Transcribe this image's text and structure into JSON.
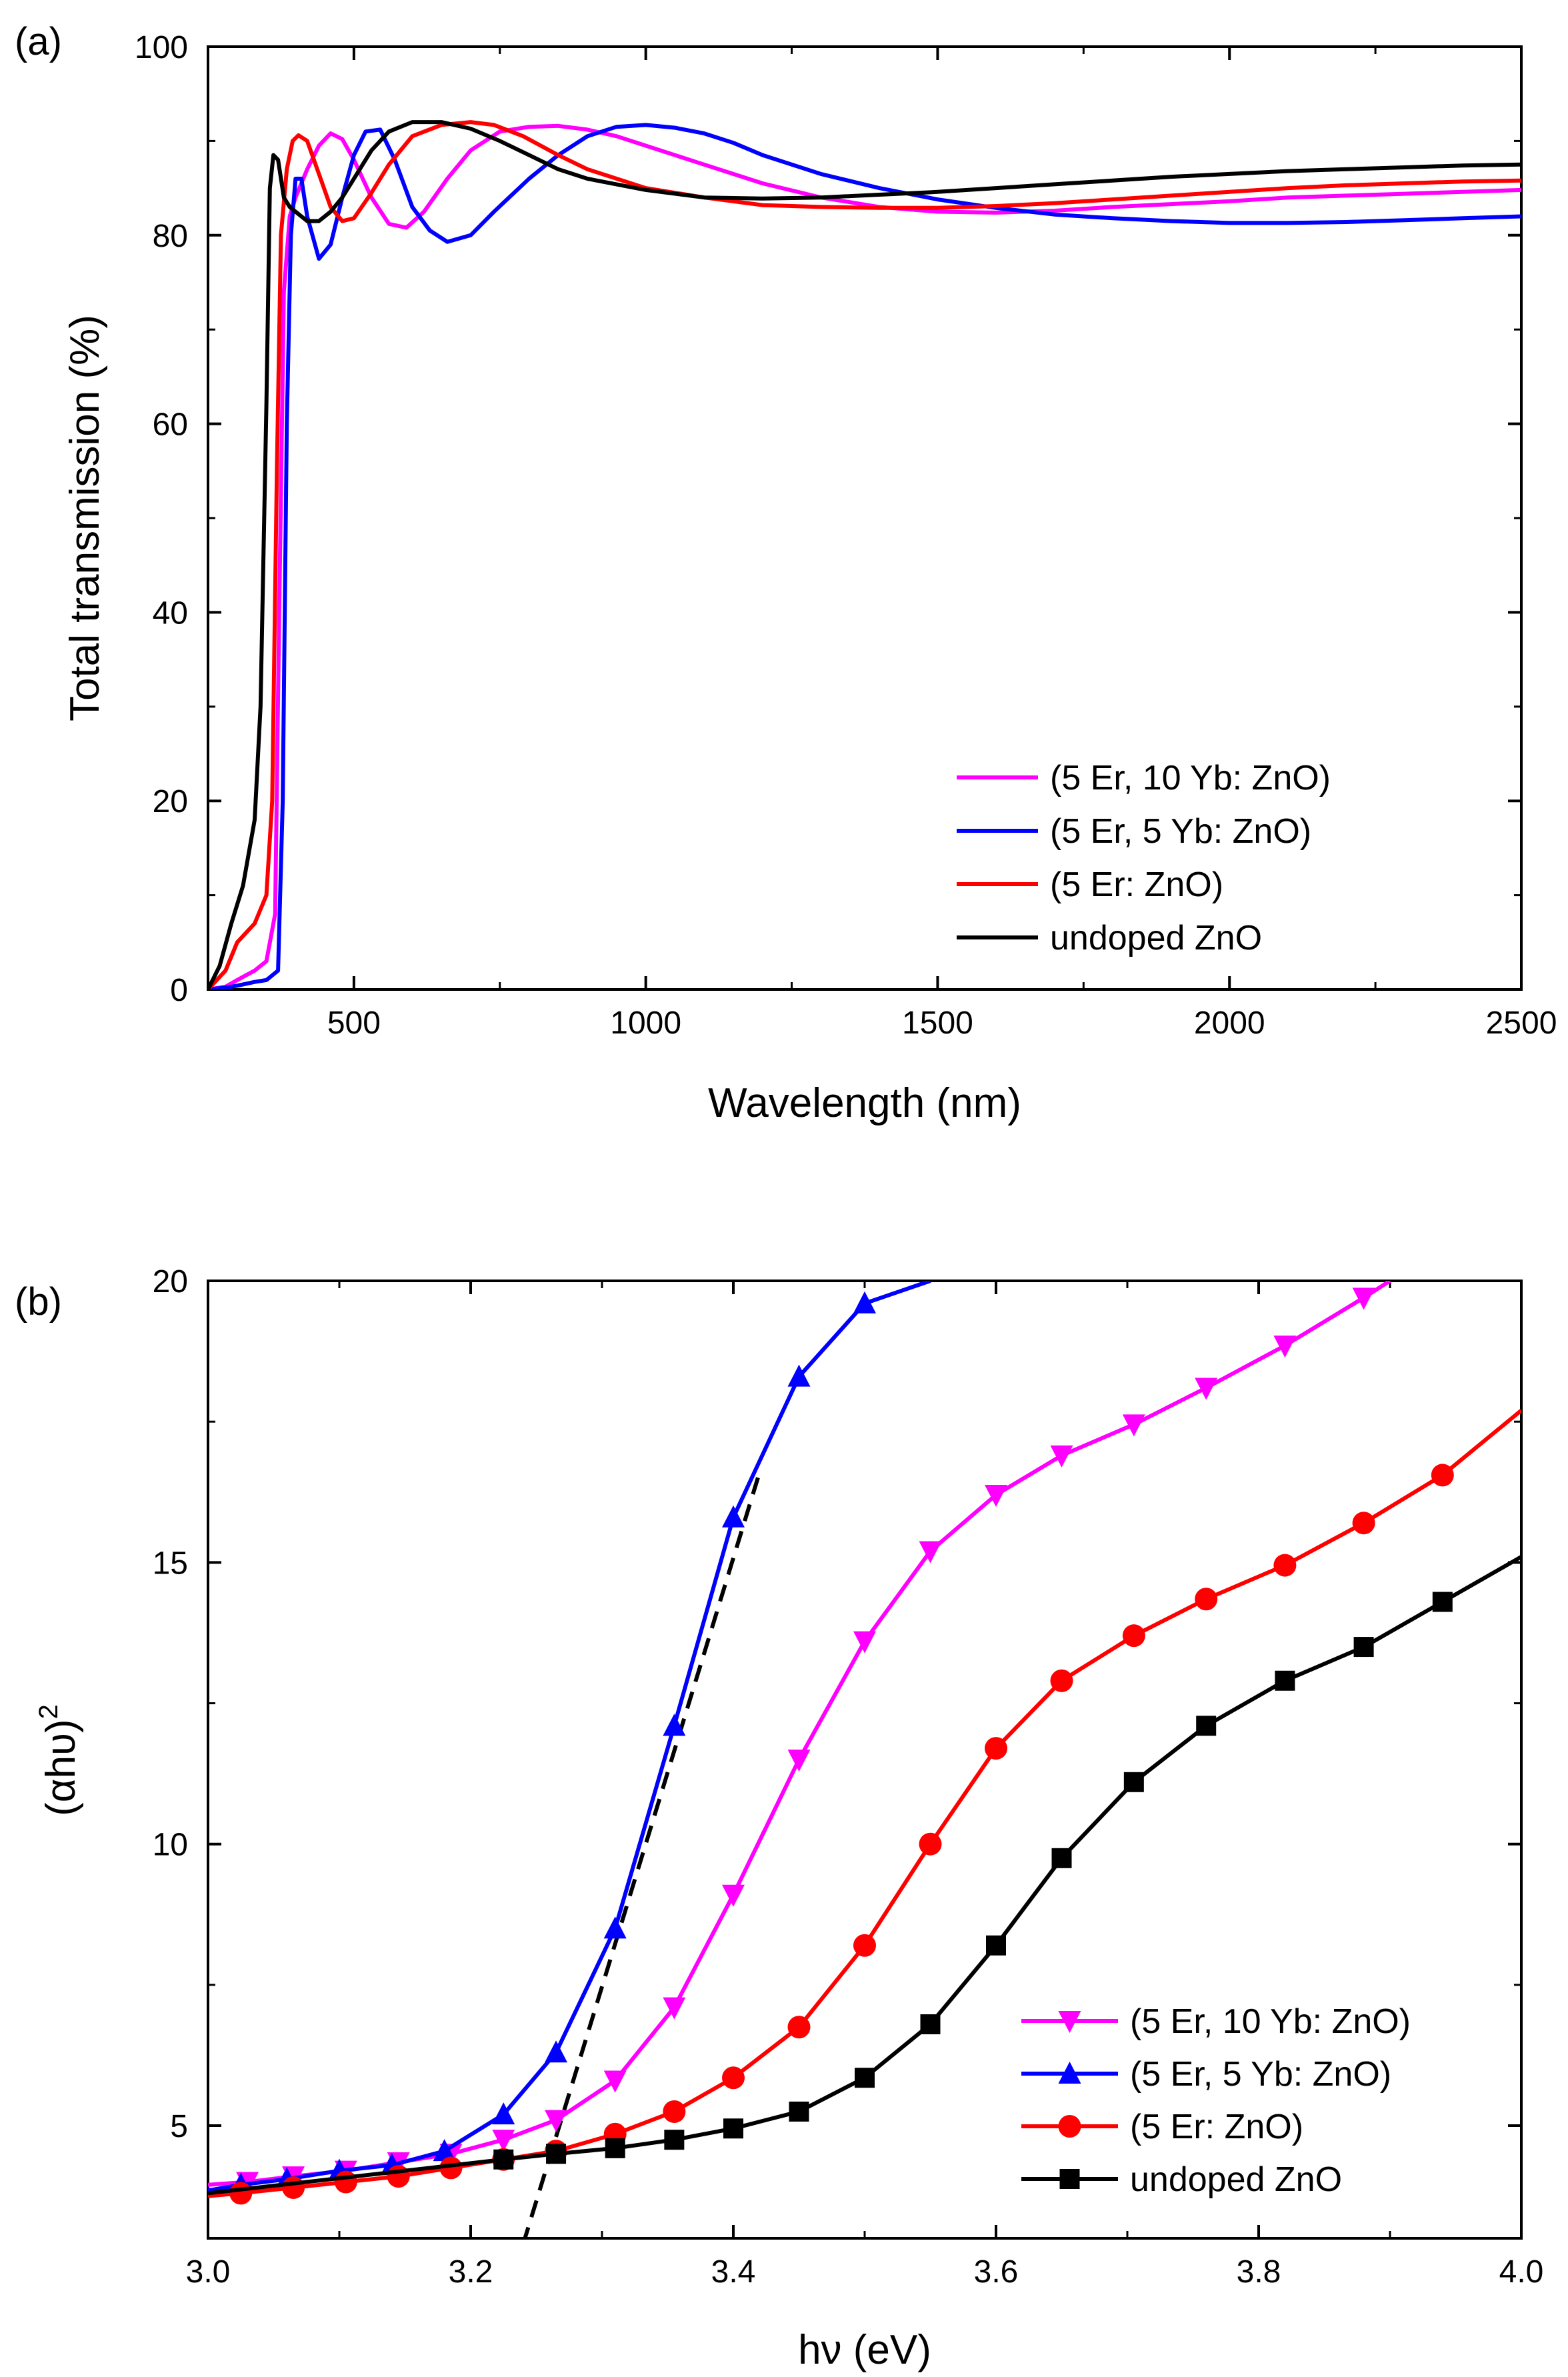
{
  "chart_data": [
    {
      "type": "line",
      "panel_label": "(a)",
      "xlabel": "Wavelength (nm)",
      "ylabel": "Total transmission (%)",
      "xlim": [
        250,
        2500
      ],
      "ylim": [
        0,
        100
      ],
      "xticks": [
        500,
        1000,
        1500,
        2000,
        2500
      ],
      "yticks": [
        0,
        20,
        40,
        60,
        80,
        100
      ],
      "legend_position": "bottom-right",
      "series": [
        {
          "name": "(5 Er, 10 Yb: ZnO)",
          "color": "#ff00ff",
          "x": [
            250,
            280,
            300,
            330,
            350,
            365,
            372,
            380,
            390,
            400,
            420,
            440,
            460,
            480,
            500,
            530,
            560,
            590,
            620,
            660,
            700,
            750,
            800,
            850,
            900,
            950,
            1000,
            1100,
            1200,
            1300,
            1400,
            1500,
            1600,
            1700,
            1800,
            1900,
            2000,
            2100,
            2200,
            2300,
            2400,
            2500
          ],
          "y": [
            0,
            0.3,
            1,
            2,
            3,
            8,
            40,
            74,
            82,
            84,
            87,
            89.5,
            90.8,
            90.2,
            88,
            84,
            81.2,
            80.8,
            82.5,
            86,
            89,
            91,
            91.5,
            91.6,
            91.2,
            90.5,
            89.5,
            87.5,
            85.5,
            84,
            83,
            82.5,
            82.4,
            82.6,
            83,
            83.3,
            83.6,
            84,
            84.2,
            84.4,
            84.6,
            84.8
          ]
        },
        {
          "name": "(5 Er, 5 Yb: ZnO)",
          "color": "#0000ff",
          "x": [
            250,
            280,
            300,
            330,
            350,
            370,
            378,
            385,
            392,
            400,
            410,
            420,
            440,
            460,
            480,
            500,
            520,
            545,
            570,
            600,
            630,
            660,
            700,
            740,
            800,
            850,
            900,
            950,
            1000,
            1050,
            1100,
            1150,
            1200,
            1300,
            1400,
            1500,
            1600,
            1700,
            1800,
            1900,
            2000,
            2100,
            2200,
            2300,
            2400,
            2500
          ],
          "y": [
            0,
            0.2,
            0.4,
            0.8,
            1,
            2,
            20,
            60,
            80,
            86,
            86,
            82,
            77.5,
            79,
            84,
            88.5,
            91,
            91.2,
            88,
            83,
            80.5,
            79.3,
            80,
            82.5,
            86,
            88.5,
            90.5,
            91.5,
            91.7,
            91.4,
            90.8,
            89.8,
            88.5,
            86.5,
            85,
            83.8,
            82.9,
            82.2,
            81.8,
            81.5,
            81.3,
            81.3,
            81.4,
            81.6,
            81.8,
            82
          ]
        },
        {
          "name": "(5 Er: ZnO)",
          "color": "#ff0000",
          "x": [
            250,
            280,
            300,
            330,
            350,
            360,
            368,
            375,
            385,
            395,
            405,
            420,
            440,
            460,
            480,
            500,
            530,
            560,
            600,
            650,
            700,
            740,
            790,
            850,
            900,
            1000,
            1100,
            1200,
            1300,
            1400,
            1500,
            1600,
            1700,
            1800,
            1900,
            2000,
            2100,
            2200,
            2300,
            2400,
            2500
          ],
          "y": [
            0,
            2,
            5,
            7,
            10,
            20,
            55,
            80,
            87,
            90,
            90.6,
            90,
            86.5,
            83,
            81.5,
            81.8,
            84.5,
            87.5,
            90.5,
            91.7,
            92,
            91.7,
            90.5,
            88.5,
            87,
            85,
            84,
            83.2,
            83,
            82.9,
            82.9,
            83.1,
            83.4,
            83.8,
            84.2,
            84.6,
            85,
            85.3,
            85.5,
            85.7,
            85.8
          ]
        },
        {
          "name": "undoped ZnO",
          "color": "#000000",
          "x": [
            250,
            270,
            290,
            310,
            330,
            340,
            350,
            356,
            362,
            370,
            380,
            390,
            400,
            420,
            440,
            460,
            480,
            500,
            530,
            560,
            600,
            650,
            700,
            750,
            800,
            850,
            900,
            1000,
            1100,
            1200,
            1300,
            1400,
            1500,
            1600,
            1700,
            1800,
            1900,
            2000,
            2100,
            2200,
            2300,
            2400,
            2500
          ],
          "y": [
            0,
            2.5,
            7,
            11,
            18,
            30,
            62,
            85,
            88.5,
            88,
            84,
            83,
            82.5,
            81.5,
            81.5,
            82.5,
            84,
            86,
            89,
            91,
            92,
            92,
            91.3,
            90,
            88.5,
            87,
            86,
            84.8,
            84,
            83.9,
            84,
            84.3,
            84.6,
            85,
            85.4,
            85.8,
            86.2,
            86.5,
            86.8,
            87,
            87.2,
            87.4,
            87.5
          ]
        }
      ]
    },
    {
      "type": "line",
      "panel_label": "(b)",
      "xlabel": "hν (eV)",
      "ylabel": "(αhυ)",
      "ylabel_superscript": "2",
      "xlim": [
        3.0,
        4.0
      ],
      "ylim": [
        3.0,
        20.0
      ],
      "xticks": [
        "3.0",
        "3.2",
        "3.4",
        "3.6",
        "3.8",
        "4.0"
      ],
      "yticks": [
        "5",
        "10",
        "15",
        "20"
      ],
      "legend_position": "bottom-right",
      "tangent_line": {
        "style": "dashed",
        "color": "#000000",
        "x": [
          3.24,
          3.42
        ],
        "y": [
          2.9,
          16.6
        ]
      },
      "series": [
        {
          "name": "(5 Er, 10 Yb: ZnO)",
          "color": "#ff00ff",
          "marker": "triangle-down",
          "x": [
            3.0,
            3.03,
            3.065,
            3.105,
            3.145,
            3.185,
            3.225,
            3.265,
            3.31,
            3.355,
            3.4,
            3.45,
            3.5,
            3.55,
            3.6,
            3.65,
            3.705,
            3.76,
            3.82,
            3.88,
            3.9
          ],
          "y": [
            3.95,
            4.0,
            4.1,
            4.2,
            4.35,
            4.5,
            4.75,
            5.1,
            5.8,
            7.1,
            9.1,
            11.5,
            13.6,
            15.2,
            16.2,
            16.9,
            17.45,
            18.1,
            18.85,
            19.7,
            20.0
          ]
        },
        {
          "name": "(5 Er, 5 Yb: ZnO)",
          "color": "#0000ff",
          "marker": "triangle-up",
          "x": [
            3.0,
            3.025,
            3.06,
            3.1,
            3.14,
            3.18,
            3.225,
            3.265,
            3.31,
            3.355,
            3.4,
            3.45,
            3.5,
            3.55
          ],
          "y": [
            3.85,
            3.95,
            4.05,
            4.2,
            4.3,
            4.55,
            5.2,
            6.3,
            8.5,
            12.1,
            15.8,
            18.3,
            19.6,
            20.0
          ]
        },
        {
          "name": "(5 Er: ZnO)",
          "color": "#ff0000",
          "marker": "circle",
          "x": [
            3.0,
            3.025,
            3.065,
            3.105,
            3.145,
            3.185,
            3.225,
            3.265,
            3.31,
            3.355,
            3.4,
            3.45,
            3.5,
            3.55,
            3.6,
            3.65,
            3.705,
            3.76,
            3.82,
            3.88,
            3.94,
            4.0
          ],
          "y": [
            3.75,
            3.8,
            3.9,
            4.0,
            4.1,
            4.25,
            4.4,
            4.55,
            4.85,
            5.25,
            5.85,
            6.75,
            8.2,
            10.0,
            11.7,
            12.9,
            13.7,
            14.35,
            14.95,
            15.7,
            16.55,
            17.7
          ]
        },
        {
          "name": "undoped ZnO",
          "color": "#000000",
          "marker": "square",
          "x": [
            3.0,
            3.225,
            3.265,
            3.31,
            3.355,
            3.4,
            3.45,
            3.5,
            3.55,
            3.6,
            3.65,
            3.705,
            3.76,
            3.82,
            3.88,
            3.94,
            4.0
          ],
          "y": [
            3.8,
            4.4,
            4.5,
            4.6,
            4.75,
            4.95,
            5.25,
            5.85,
            6.8,
            8.2,
            9.75,
            11.1,
            12.1,
            12.9,
            13.5,
            14.3,
            15.1
          ]
        }
      ]
    }
  ]
}
